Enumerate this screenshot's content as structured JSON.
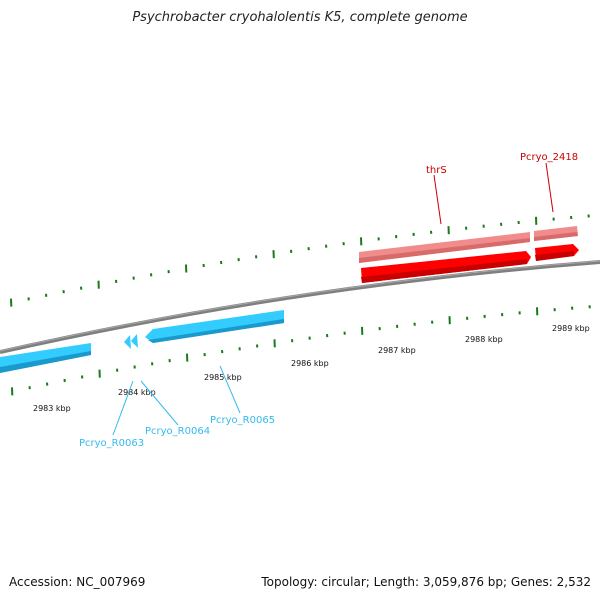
{
  "title": "Psychrobacter cryohalolentis K5, complete genome",
  "footer": {
    "accession": "Accession: NC_007969",
    "summary": "Topology: circular; Length: 3,059,876 bp; Genes: 2,532"
  },
  "colors": {
    "forward_strand_genes": "#ff0000",
    "forward_strand_cds": "#f08080",
    "reverse_strand_genes": "#33ccff",
    "backbone": "#808080",
    "ticks": "#1a7a1a",
    "forward_labels": "#cc0000",
    "reverse_labels": "#33bbee"
  },
  "ticks": [
    "2983 kbp",
    "2984 kbp",
    "2985 kbp",
    "2986 kbp",
    "2987 kbp",
    "2988 kbp",
    "2989 kbp"
  ],
  "genes": [
    {
      "label": "thrS",
      "strand": "forward"
    },
    {
      "label": "Pcryo_2418",
      "strand": "forward"
    },
    {
      "label": "Pcryo_R0063",
      "strand": "reverse"
    },
    {
      "label": "Pcryo_R0064",
      "strand": "reverse"
    },
    {
      "label": "Pcryo_R0065",
      "strand": "reverse"
    }
  ]
}
